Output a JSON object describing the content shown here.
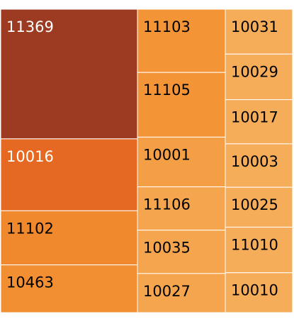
{
  "chart_data": {
    "type": "treemap",
    "title": "",
    "columns": [
      {
        "tiles": [
          {
            "label": "11369",
            "weight": 182,
            "color": "#9c3b22",
            "text_color": "#ffffff"
          },
          {
            "label": "10016",
            "weight": 101,
            "color": "#e56922",
            "text_color": "#ffffff"
          },
          {
            "label": "11102",
            "weight": 76,
            "color": "#f0892d",
            "text_color": "#000000"
          },
          {
            "label": "10463",
            "weight": 67,
            "color": "#f28f33",
            "text_color": "#000000"
          }
        ]
      },
      {
        "tiles": [
          {
            "label": "11103",
            "weight": 89,
            "color": "#f39437",
            "text_color": "#000000"
          },
          {
            "label": "11105",
            "weight": 91,
            "color": "#f39437",
            "text_color": "#000000"
          },
          {
            "label": "10001",
            "weight": 70,
            "color": "#f49e45",
            "text_color": "#000000"
          },
          {
            "label": "11106",
            "weight": 61,
            "color": "#f5a54d",
            "text_color": "#000000"
          },
          {
            "label": "10035",
            "weight": 61,
            "color": "#f5a54d",
            "text_color": "#000000"
          },
          {
            "label": "10027",
            "weight": 55,
            "color": "#f5a54d",
            "text_color": "#000000"
          }
        ]
      },
      {
        "tiles": [
          {
            "label": "10031",
            "weight": 63,
            "color": "#f6ad5a",
            "text_color": "#000000"
          },
          {
            "label": "10029",
            "weight": 64,
            "color": "#f6ad5a",
            "text_color": "#000000"
          },
          {
            "label": "10017",
            "weight": 62,
            "color": "#f6ad5a",
            "text_color": "#000000"
          },
          {
            "label": "10003",
            "weight": 61,
            "color": "#f6ad5a",
            "text_color": "#000000"
          },
          {
            "label": "10025",
            "weight": 56,
            "color": "#f6ad5a",
            "text_color": "#000000"
          },
          {
            "label": "11010",
            "weight": 64,
            "color": "#f6ad5a",
            "text_color": "#000000"
          },
          {
            "label": "10010",
            "weight": 56,
            "color": "#f6ad5a",
            "text_color": "#000000"
          }
        ]
      }
    ]
  }
}
